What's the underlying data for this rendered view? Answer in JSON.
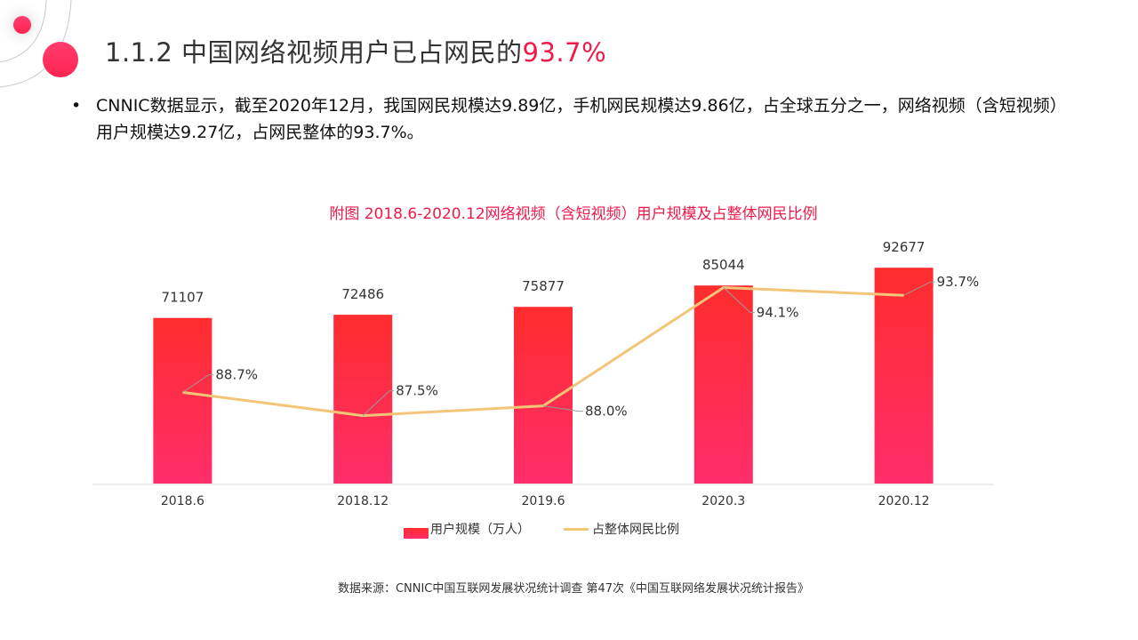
{
  "slide": {
    "title_prefix": "1.1.2  中国网络视频用户已占网民的",
    "title_highlight": "93.7%",
    "bullet_marker": "•",
    "bullet_text": "CNNIC数据显示，截至2020年12月，我国网民规模达9.89亿，手机网民规模达9.86亿，占全球五分之一，网络视频（含短视频）用户规模达9.27亿，占网民整体的93.7%。",
    "source": "数据来源：CNNIC中国互联网发展状况统计调查 第47次《中国互联网络发展状况统计报告》",
    "accent_color": "#f0194a"
  },
  "chart_data": {
    "type": "bar",
    "title": "附图 2018.6-2020.12网络视频（含短视频）用户规模及占整体网民比例",
    "categories": [
      "2018.6",
      "2018.12",
      "2019.6",
      "2020.3",
      "2020.12"
    ],
    "series": [
      {
        "name": "用户规模（万人）",
        "type": "bar",
        "values": [
          71107,
          72486,
          75877,
          85044,
          92677
        ],
        "labels": [
          "71107",
          "72486",
          "75877",
          "85044",
          "92677"
        ],
        "color_top": "#ff2d2d",
        "color_bottom": "#ff2d6a"
      },
      {
        "name": "占整体网民比例",
        "type": "line",
        "values": [
          88.7,
          87.5,
          88.0,
          94.1,
          93.7
        ],
        "labels": [
          "88.7%",
          "87.5%",
          "88.0%",
          "94.1%",
          "93.7%"
        ],
        "color": "#f3c579",
        "axis": "secondary"
      }
    ],
    "ylim": [
      0,
      100000
    ],
    "ylim_secondary": [
      84,
      96
    ],
    "grid": false,
    "legend": "bottom"
  }
}
